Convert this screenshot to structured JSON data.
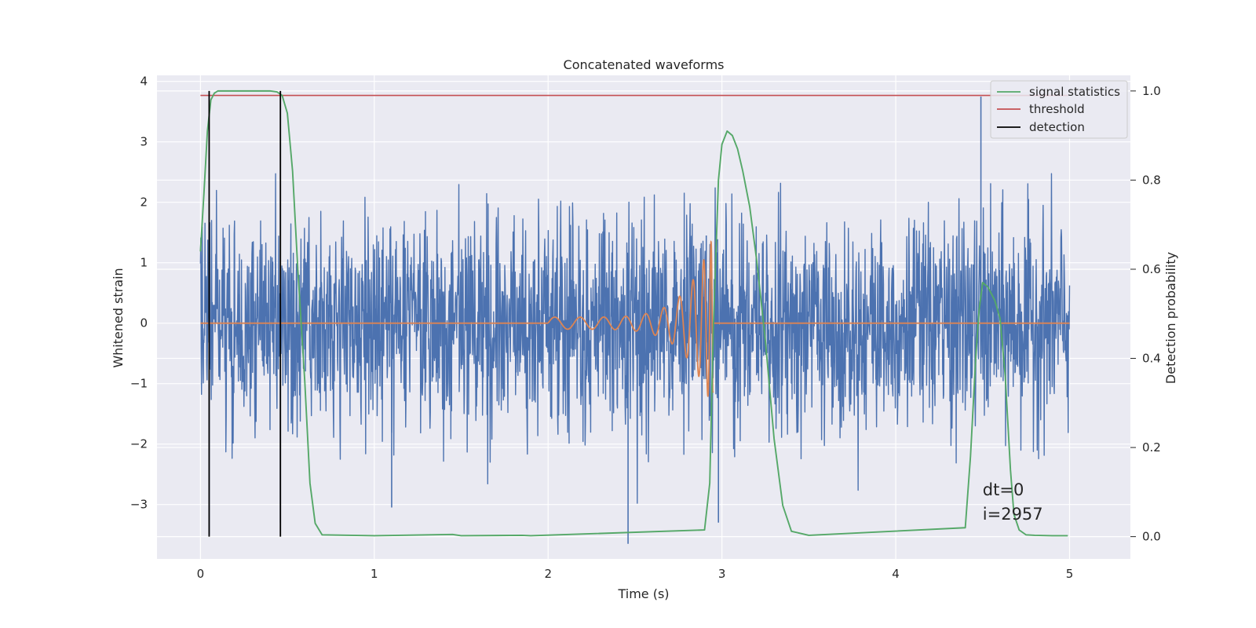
{
  "chart_data": {
    "type": "line",
    "title": "Concatenated waveforms",
    "xlabel": "Time (s)",
    "ylabel": "Whitened strain",
    "ylabel_right": "Detection probability",
    "xlim": [
      -0.25,
      5.35
    ],
    "ylim": [
      -3.9,
      4.1
    ],
    "ylim_right": [
      -0.05,
      1.035
    ],
    "x_ticks": [
      0,
      1,
      2,
      3,
      4,
      5
    ],
    "y_ticks": [
      -3,
      -2,
      -1,
      0,
      1,
      2,
      3,
      4
    ],
    "y_ticks_right": [
      0.0,
      0.2,
      0.4,
      0.6,
      0.8,
      1.0
    ],
    "grid": true,
    "legend_position": "top-right",
    "colors": {
      "background": "#eaeaf2",
      "grid": "#ffffff",
      "strain": "#4c72b0",
      "template": "#dd8452",
      "signal_statistics": "#55a868",
      "threshold": "#c44e52",
      "detection": "#000000"
    },
    "series": [
      {
        "name": "",
        "role": "whitened-strain",
        "axis": "left",
        "x_range": [
          0,
          5
        ],
        "envelope_typical": [
          -2.0,
          2.2
        ],
        "peaks": [
          [
            4.49,
            3.75
          ],
          [
            0.05,
            -3.5
          ],
          [
            2.46,
            -3.65
          ],
          [
            0.46,
            -3.3
          ],
          [
            2.98,
            -3.3
          ],
          [
            1.1,
            -3.05
          ],
          [
            2.91,
            1.45
          ]
        ]
      },
      {
        "name": "",
        "role": "template",
        "axis": "left",
        "x_range": [
          2.0,
          2.95
        ],
        "amplitude_start": 0.1,
        "amplitude_end": 1.45
      },
      {
        "name": "signal statistics",
        "axis": "right",
        "x": [
          0.0,
          0.02,
          0.04,
          0.06,
          0.08,
          0.1,
          0.15,
          0.3,
          0.4,
          0.44,
          0.47,
          0.5,
          0.53,
          0.56,
          0.6,
          0.63,
          0.66,
          0.7,
          1.0,
          1.45,
          1.5,
          1.85,
          1.9,
          2.9,
          2.93,
          2.95,
          2.98,
          3.0,
          3.03,
          3.06,
          3.09,
          3.12,
          3.16,
          3.2,
          3.25,
          3.3,
          3.35,
          3.4,
          3.5,
          4.4,
          4.43,
          4.46,
          4.48,
          4.5,
          4.53,
          4.57,
          4.6,
          4.63,
          4.66,
          4.68,
          4.71,
          4.75,
          4.8,
          4.9,
          4.99
        ],
        "values": [
          0.64,
          0.77,
          0.91,
          0.98,
          0.995,
          1.0,
          1.0,
          1.0,
          1.0,
          0.998,
          0.99,
          0.95,
          0.82,
          0.6,
          0.35,
          0.12,
          0.03,
          0.004,
          0.002,
          0.005,
          0.002,
          0.003,
          0.002,
          0.015,
          0.12,
          0.46,
          0.8,
          0.88,
          0.91,
          0.9,
          0.87,
          0.82,
          0.74,
          0.62,
          0.44,
          0.22,
          0.07,
          0.012,
          0.003,
          0.02,
          0.18,
          0.4,
          0.51,
          0.57,
          0.56,
          0.53,
          0.49,
          0.36,
          0.15,
          0.05,
          0.015,
          0.004,
          0.003,
          0.002,
          0.002
        ]
      },
      {
        "name": "threshold",
        "axis": "right",
        "x": [
          0.0,
          4.99
        ],
        "values": [
          0.99,
          0.99
        ]
      },
      {
        "name": "detection",
        "axis": "right",
        "x": [
          0.05,
          0.46
        ],
        "y_range": [
          0.0,
          1.0
        ]
      }
    ],
    "annotations": [
      {
        "text": "dt=0",
        "x": 4.5,
        "y": -2.85
      },
      {
        "text": "i=2957",
        "x": 4.5,
        "y": -3.25
      }
    ]
  }
}
